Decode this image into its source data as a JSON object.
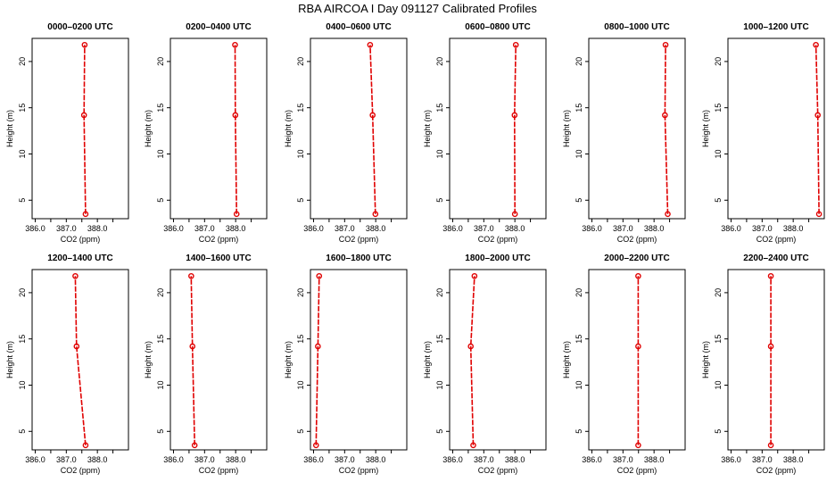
{
  "title": "RBA AIRCOA I  Day 091127  Calibrated Profiles",
  "colors": {
    "profile": "#e00000",
    "axes": "#000000",
    "background": "#ffffff"
  },
  "chart_data": {
    "type": "line",
    "layout": "2 rows x 6 small multiples",
    "xlabel": "CO2 (ppm)",
    "ylabel": "Height (m)",
    "xlim": [
      385.9,
      389.0
    ],
    "ylim": [
      3.0,
      22.5
    ],
    "xticks": [
      386.0,
      386.5,
      387.0,
      387.5,
      388.0,
      388.5
    ],
    "xtick_labels": [
      "386.0",
      "",
      "387.0",
      "",
      "388.0",
      ""
    ],
    "yticks": [
      5,
      10,
      15,
      20
    ],
    "ytick_labels": [
      "5",
      "10",
      "15",
      "20"
    ],
    "heights": [
      3.5,
      14.2,
      21.8
    ],
    "panels": [
      {
        "title": "0000–0200 UTC",
        "values": [
          387.62,
          387.57,
          387.59
        ]
      },
      {
        "title": "0200–0400 UTC",
        "values": [
          388.03,
          387.99,
          387.98
        ]
      },
      {
        "title": "0400–0600 UTC",
        "values": [
          387.99,
          387.9,
          387.82
        ]
      },
      {
        "title": "0600–0800 UTC",
        "values": [
          388.0,
          387.99,
          388.03
        ]
      },
      {
        "title": "0800–1000 UTC",
        "values": [
          388.44,
          388.35,
          388.37
        ]
      },
      {
        "title": "1000–1200 UTC",
        "values": [
          388.83,
          388.79,
          388.73
        ]
      },
      {
        "title": "1200–1400 UTC",
        "values": [
          387.62,
          387.33,
          387.29
        ]
      },
      {
        "title": "1400–1600 UTC",
        "values": [
          386.68,
          386.61,
          386.57
        ]
      },
      {
        "title": "1600–1800 UTC",
        "values": [
          386.08,
          386.14,
          386.18
        ]
      },
      {
        "title": "1800–2000 UTC",
        "values": [
          386.66,
          386.58,
          386.7
        ]
      },
      {
        "title": "2000–2200 UTC",
        "values": [
          387.49,
          387.49,
          387.49
        ]
      },
      {
        "title": "2200–2400 UTC",
        "values": [
          387.28,
          387.28,
          387.28
        ]
      }
    ]
  }
}
